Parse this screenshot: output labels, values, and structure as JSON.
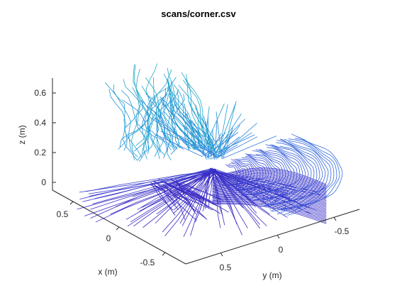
{
  "chart_data": {
    "type": "line",
    "title": "scans/corner.csv",
    "xlabel": "x (m)",
    "ylabel": "y (m)",
    "zlabel": "z (m)",
    "x_ticks": [
      "0.5",
      "0",
      "-0.5"
    ],
    "x_tick_values": [
      0.5,
      0,
      -0.5
    ],
    "y_ticks": [
      "-0.5",
      "0",
      "0.5"
    ],
    "y_tick_values": [
      -0.5,
      0,
      0.5
    ],
    "z_ticks": [
      "0",
      "0.2",
      "0.4",
      "0.6"
    ],
    "z_tick_values": [
      0,
      0.2,
      0.4,
      0.6
    ],
    "xlim": [
      -0.75,
      0.75
    ],
    "ylim": [
      -0.75,
      0.75
    ],
    "zlim": [
      -0.05,
      0.7
    ],
    "grid": false,
    "colormap": [
      "#3a2ac4",
      "#3b4fd8",
      "#2f7ce0",
      "#1fa0d0",
      "#22b8b8"
    ],
    "series_description": "dense family of 3D scan lines (depth-camera corner scan), colored by height"
  }
}
